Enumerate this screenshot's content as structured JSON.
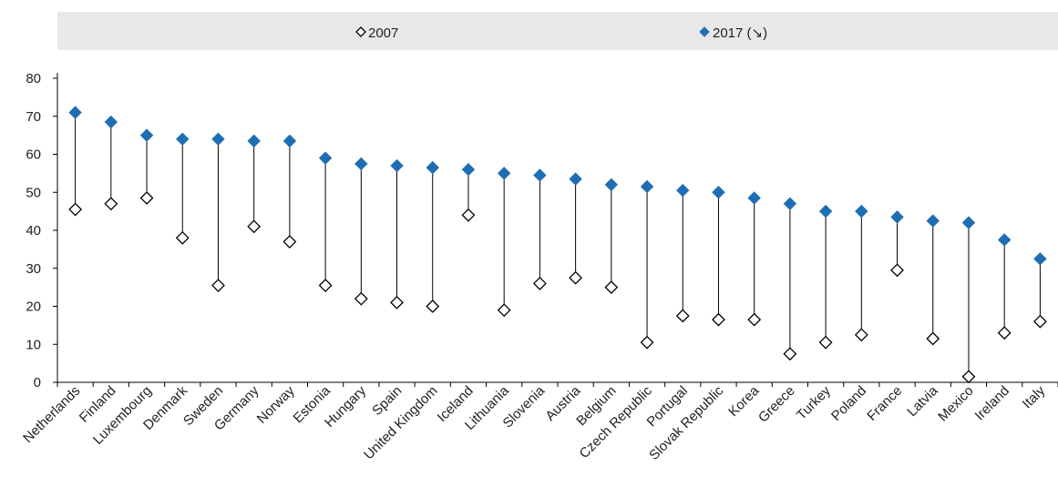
{
  "chart_data": {
    "type": "scatter",
    "legend": {
      "position": "top",
      "entries": [
        {
          "label": "2007",
          "marker": "hollow-diamond"
        },
        {
          "label": "2017 (↘)",
          "marker": "filled-diamond"
        }
      ]
    },
    "categories": [
      "Netherlands",
      "Finland",
      "Luxembourg",
      "Denmark",
      "Sweden",
      "Germany",
      "Norway",
      "Estonia",
      "Hungary",
      "Spain",
      "United Kingdom",
      "Iceland",
      "Lithuania",
      "Slovenia",
      "Austria",
      "Belgium",
      "Czech Republic",
      "Portugal",
      "Slovak Republic",
      "Korea",
      "Greece",
      "Turkey",
      "Poland",
      "France",
      "Latvia",
      "Mexico",
      "Ireland",
      "Italy"
    ],
    "series": [
      {
        "name": "2007",
        "values": [
          45.5,
          47,
          48.5,
          38,
          25.5,
          41,
          37,
          25.5,
          22,
          21,
          20,
          44,
          19,
          26,
          27.5,
          25,
          10.5,
          17.5,
          16.5,
          16.5,
          7.5,
          10.5,
          12.5,
          29.5,
          11.5,
          1.5,
          13,
          16
        ]
      },
      {
        "name": "2017 (↘)",
        "values": [
          71,
          68.5,
          65,
          64,
          64,
          63.5,
          63.5,
          59,
          57.5,
          57,
          56.5,
          56,
          55,
          54.5,
          53.5,
          52,
          51.5,
          50.5,
          50,
          48.5,
          47,
          45,
          45,
          43.5,
          42.5,
          42,
          37.5,
          32.5
        ]
      }
    ],
    "ylim": [
      0,
      80
    ],
    "yticks": [
      0,
      10,
      20,
      30,
      40,
      50,
      60,
      70,
      80
    ],
    "grid": false,
    "colors": {
      "filled": "#1f6eb3",
      "hollow_stroke": "#000000",
      "connector": "#000000",
      "legend_bg": "#e8e8e8",
      "axis": "#000000"
    }
  }
}
